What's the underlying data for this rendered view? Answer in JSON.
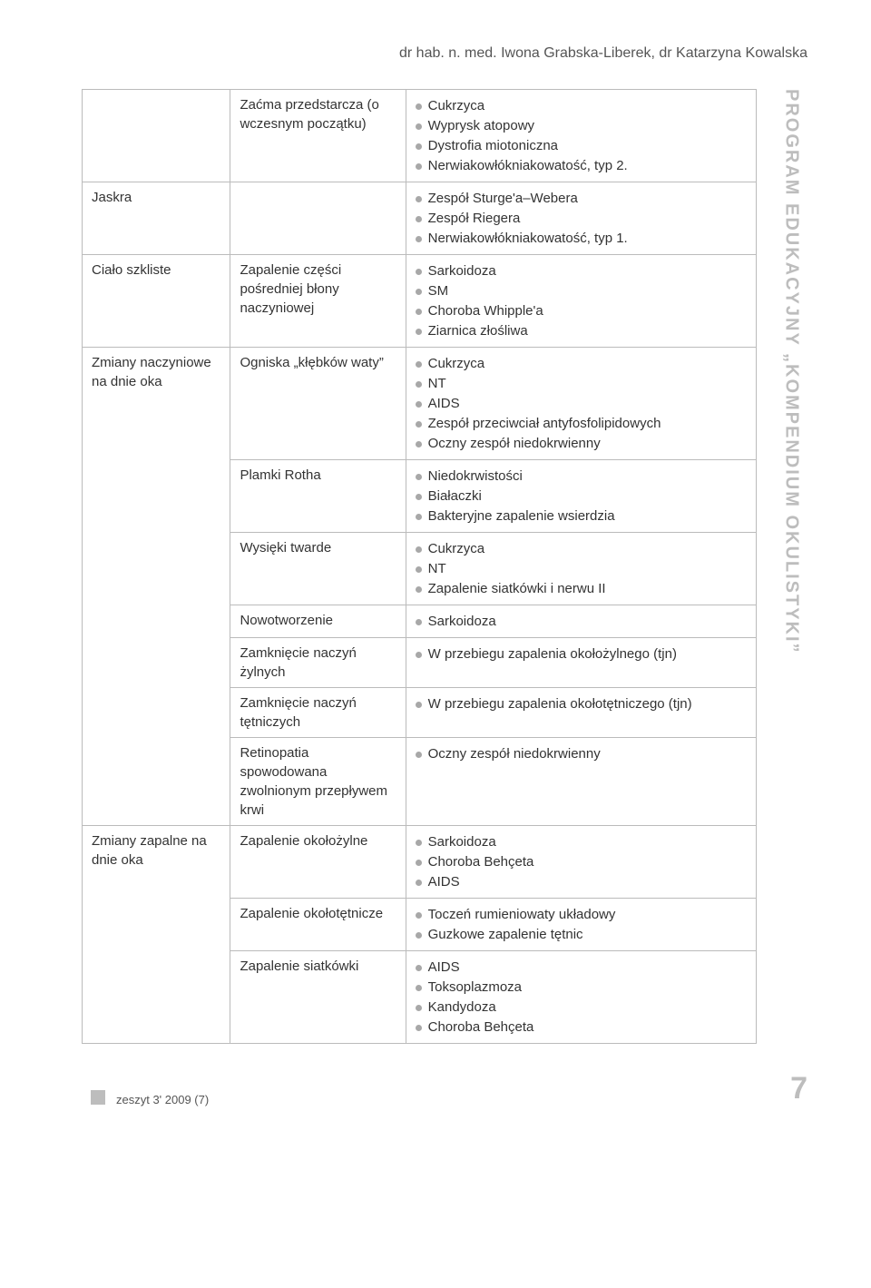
{
  "header": "dr hab. n. med. Iwona Grabska-Liberek, dr Katarzyna Kowalska",
  "sidebar": "PROGRAM EDUKACYJNY „KOMPENDIUM OKULISTYKI”",
  "rows": [
    {
      "c1": "",
      "c2": "Zaćma przedstarcza (o wczesnym początku)",
      "items": [
        "Cukrzyca",
        "Wyprysk atopowy",
        "Dystrofia miotoniczna",
        "Nerwiakowłókniakowatość, typ 2."
      ]
    },
    {
      "c1": "Jaskra",
      "c2": "",
      "items": [
        "Zespół Sturge'a–Webera",
        "Zespół Riegera",
        "Nerwiakowłókniakowatość, typ 1."
      ]
    },
    {
      "c1": "Ciało szkliste",
      "c2": "Zapalenie części pośredniej błony naczyniowej",
      "items": [
        "Sarkoidoza",
        "SM",
        "Choroba Whipple'a",
        "Ziarnica złośliwa"
      ]
    }
  ],
  "row3": {
    "c1": "Zmiany naczyniowe na dnie oka",
    "subs": [
      {
        "c2": "Ogniska „kłębków waty”",
        "items": [
          "Cukrzyca",
          "NT",
          "AIDS",
          "Zespół przeciwciał antyfosfolipidowych",
          "Oczny zespół niedokrwienny"
        ]
      },
      {
        "c2": "Plamki Rotha",
        "items": [
          "Niedokrwistości",
          "Białaczki",
          "Bakteryjne zapalenie wsierdzia"
        ]
      },
      {
        "c2": "Wysięki twarde",
        "items": [
          "Cukrzyca",
          "NT",
          "Zapalenie siatkówki i nerwu II"
        ]
      },
      {
        "c2": "Nowotworzenie",
        "items": [
          "Sarkoidoza"
        ]
      },
      {
        "c2": "Zamknięcie naczyń żylnych",
        "items": [
          "W przebiegu zapalenia okołożylnego (tjn)"
        ]
      },
      {
        "c2": "Zamknięcie naczyń tętniczych",
        "items": [
          "W przebiegu zapalenia okołotętniczego (tjn)"
        ]
      },
      {
        "c2": "Retinopatia spowodowana zwolnionym przepływem krwi",
        "items": [
          "Oczny zespół niedokrwienny"
        ]
      }
    ]
  },
  "row4": {
    "c1": "Zmiany zapalne na dnie oka",
    "subs": [
      {
        "c2": "Zapalenie okołożylne",
        "items": [
          "Sarkoidoza",
          "Choroba Behçeta",
          "AIDS"
        ]
      },
      {
        "c2": "Zapalenie okołotętnicze",
        "items": [
          "Toczeń rumieniowaty układowy",
          "Guzkowe zapalenie tętnic"
        ]
      },
      {
        "c2": "Zapalenie siatkówki",
        "items": [
          "AIDS",
          "Toksoplazmoza",
          "Kandydoza",
          "Choroba Behçeta"
        ]
      }
    ]
  },
  "footer": {
    "issue": "zeszyt 3' 2009 (7)",
    "page": "7"
  }
}
